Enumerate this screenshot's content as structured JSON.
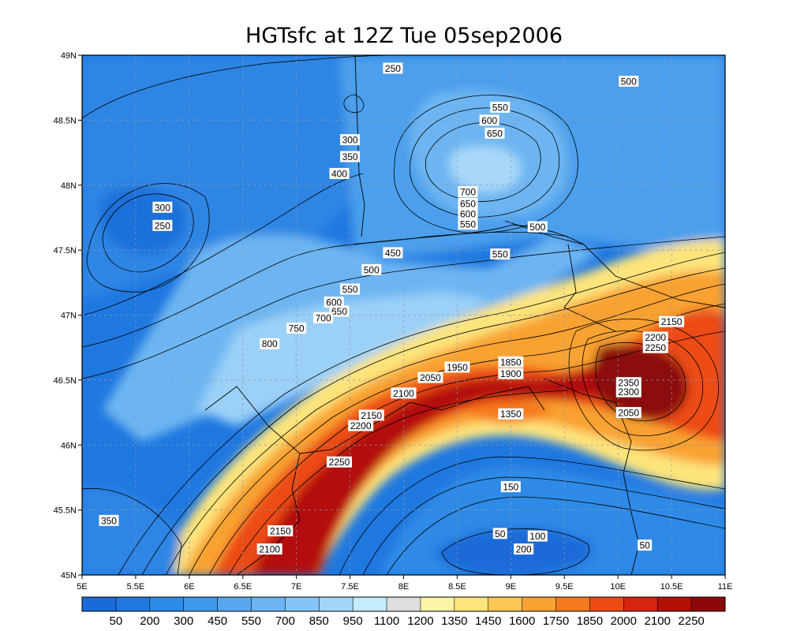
{
  "chart_data": {
    "type": "heatmap",
    "title": "HGTsfc at 12Z Tue 05sep2006",
    "xlabel": "",
    "ylabel": "",
    "xlim": [
      5,
      11
    ],
    "ylim": [
      45,
      49
    ],
    "x_ticks": [
      "5E",
      "5.5E",
      "6E",
      "6.5E",
      "7E",
      "7.5E",
      "8E",
      "8.5E",
      "9E",
      "9.5E",
      "10E",
      "10.5E",
      "11E"
    ],
    "y_ticks": [
      "45N",
      "45.5N",
      "46N",
      "46.5N",
      "47N",
      "47.5N",
      "48N",
      "48.5N",
      "49N"
    ],
    "grid": true,
    "colorbar": {
      "placement": "bottom",
      "levels": [
        "50",
        "200",
        "300",
        "450",
        "550",
        "700",
        "850",
        "950",
        "1100",
        "1200",
        "1350",
        "1450",
        "1600",
        "1750",
        "1850",
        "2000",
        "2100",
        "2250"
      ],
      "colors": [
        "#1a6ad8",
        "#1f78e0",
        "#2d8ae6",
        "#3f98ea",
        "#57a7ee",
        "#6db5f2",
        "#86c4f5",
        "#a2d6f9",
        "#c4ecfc",
        "#dedede",
        "#fbf3a6",
        "#fde47c",
        "#fcc755",
        "#f9a233",
        "#f57a1f",
        "#ec4c13",
        "#d72410",
        "#b31008",
        "#8c0808"
      ]
    },
    "contour_labels": [
      {
        "text": "250",
        "lon": 7.9,
        "lat": 48.9
      },
      {
        "text": "500",
        "lon": 10.1,
        "lat": 48.8
      },
      {
        "text": "550",
        "lon": 8.9,
        "lat": 48.6
      },
      {
        "text": "600",
        "lon": 8.8,
        "lat": 48.5
      },
      {
        "text": "650",
        "lon": 8.85,
        "lat": 48.4
      },
      {
        "text": "300",
        "lon": 7.5,
        "lat": 48.35
      },
      {
        "text": "350",
        "lon": 7.5,
        "lat": 48.22
      },
      {
        "text": "400",
        "lon": 7.4,
        "lat": 48.09
      },
      {
        "text": "700",
        "lon": 8.6,
        "lat": 47.95
      },
      {
        "text": "650",
        "lon": 8.6,
        "lat": 47.86
      },
      {
        "text": "600",
        "lon": 8.6,
        "lat": 47.78
      },
      {
        "text": "550",
        "lon": 8.6,
        "lat": 47.7
      },
      {
        "text": "500",
        "lon": 9.25,
        "lat": 47.68
      },
      {
        "text": "300",
        "lon": 5.75,
        "lat": 47.83
      },
      {
        "text": "250",
        "lon": 5.75,
        "lat": 47.69
      },
      {
        "text": "450",
        "lon": 7.9,
        "lat": 47.48
      },
      {
        "text": "550",
        "lon": 8.9,
        "lat": 47.47
      },
      {
        "text": "500",
        "lon": 7.7,
        "lat": 47.35
      },
      {
        "text": "550",
        "lon": 7.5,
        "lat": 47.2
      },
      {
        "text": "600",
        "lon": 7.35,
        "lat": 47.1
      },
      {
        "text": "650",
        "lon": 7.4,
        "lat": 47.03
      },
      {
        "text": "700",
        "lon": 7.25,
        "lat": 46.98
      },
      {
        "text": "750",
        "lon": 7.0,
        "lat": 46.9
      },
      {
        "text": "800",
        "lon": 6.75,
        "lat": 46.78
      },
      {
        "text": "1850",
        "lon": 9.0,
        "lat": 46.64
      },
      {
        "text": "1900",
        "lon": 9.0,
        "lat": 46.55
      },
      {
        "text": "1950",
        "lon": 8.5,
        "lat": 46.6
      },
      {
        "text": "2050",
        "lon": 8.25,
        "lat": 46.52
      },
      {
        "text": "2100",
        "lon": 8.0,
        "lat": 46.4
      },
      {
        "text": "2150",
        "lon": 7.7,
        "lat": 46.23
      },
      {
        "text": "2200",
        "lon": 7.6,
        "lat": 46.15
      },
      {
        "text": "2250",
        "lon": 7.4,
        "lat": 45.87
      },
      {
        "text": "2150",
        "lon": 6.85,
        "lat": 45.34
      },
      {
        "text": "2100",
        "lon": 6.75,
        "lat": 45.2
      },
      {
        "text": "2200",
        "lon": 10.35,
        "lat": 46.83
      },
      {
        "text": "2250",
        "lon": 10.35,
        "lat": 46.75
      },
      {
        "text": "2150",
        "lon": 10.5,
        "lat": 46.95
      },
      {
        "text": "2350",
        "lon": 10.1,
        "lat": 46.48
      },
      {
        "text": "2300",
        "lon": 10.1,
        "lat": 46.41
      },
      {
        "text": "2050",
        "lon": 10.1,
        "lat": 46.25
      },
      {
        "text": "1350",
        "lon": 9.0,
        "lat": 46.24
      },
      {
        "text": "150",
        "lon": 9.0,
        "lat": 45.68
      },
      {
        "text": "350",
        "lon": 5.25,
        "lat": 45.42
      },
      {
        "text": "50",
        "lon": 8.9,
        "lat": 45.32
      },
      {
        "text": "100",
        "lon": 9.25,
        "lat": 45.3
      },
      {
        "text": "200",
        "lon": 9.12,
        "lat": 45.2
      },
      {
        "text": "50",
        "lon": 10.25,
        "lat": 45.23
      }
    ]
  }
}
